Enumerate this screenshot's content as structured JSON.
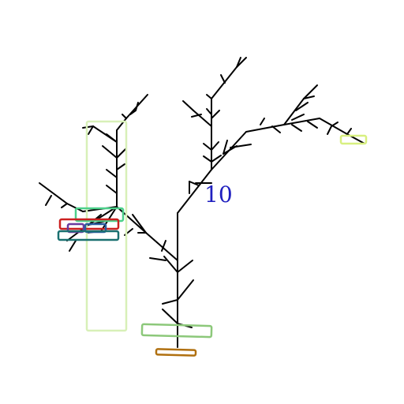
{
  "label": {
    "text": "10",
    "color": "#1f1fbf"
  },
  "colors": {
    "tree": "#000000",
    "box_pale_green": "#d8f0b8",
    "box_mint": "#4cd08a",
    "box_red": "#cc2020",
    "box_purple": "#6a3aa0",
    "box_blue": "#2a5aa0",
    "box_teal": "#1a7070",
    "box_green_small": "#80c070",
    "box_green_base": "#8cc87a",
    "box_orange": "#b07010",
    "box_yellow": "#d8f080"
  }
}
